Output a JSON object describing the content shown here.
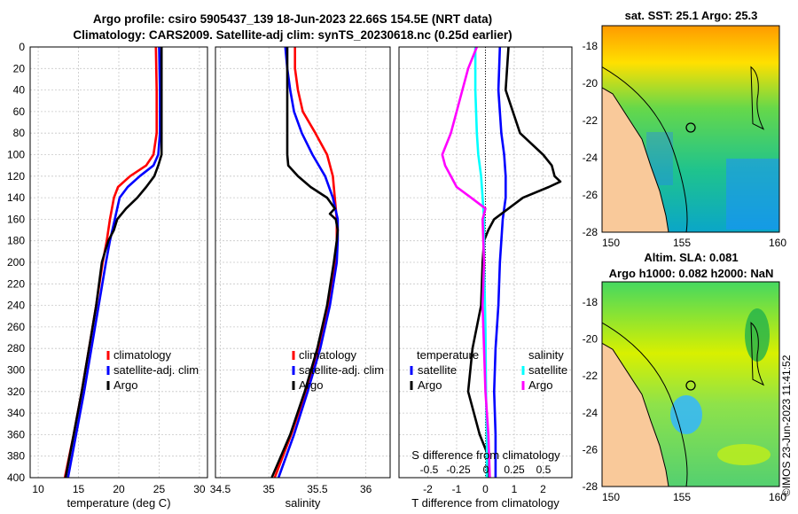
{
  "header": {
    "title_line1": "Argo profile: csiro 5905437_139 18-Jun-2023 22.66S 154.5E (NRT data)",
    "title_line2": "Climatology: CARS2009. Satellite-adj clim: synTS_20230618.nc (0.25d earlier)"
  },
  "maps": {
    "top_title": "sat. SST: 25.1 Argo: 25.3",
    "bottom_title_line1": "Altim. SLA: 0.081",
    "bottom_title_line2": "Argo h1000: 0.082 h2000: NaN",
    "x_ticks": [
      "150",
      "155",
      "160"
    ],
    "y_ticks": [
      "-18",
      "-20",
      "-22",
      "-24",
      "-26",
      "-28"
    ],
    "land_color": "#f9c99a"
  },
  "side_stamp": "©IMOS 23-Jun-2023 11:41:52",
  "colors": {
    "climatology": "#ff0000",
    "satellite": "#0000ff",
    "argo": "#000000",
    "sal_satellite": "#00ffff",
    "sal_argo": "#ff00ff"
  },
  "chart_data": [
    {
      "type": "line",
      "xlabel": "temperature (deg C)",
      "ylabel": "",
      "xlim": [
        9,
        31
      ],
      "ylim": [
        0,
        400
      ],
      "x_ticks": [
        10,
        15,
        20,
        25,
        30
      ],
      "y_ticks": [
        0,
        20,
        40,
        60,
        80,
        100,
        120,
        140,
        160,
        180,
        200,
        220,
        240,
        260,
        280,
        300,
        320,
        340,
        360,
        380,
        400
      ],
      "legend": [
        "climatology",
        "satellite-adj. clim",
        "Argo"
      ],
      "series": [
        {
          "name": "climatology",
          "color": "#ff0000",
          "depth": [
            0,
            40,
            80,
            100,
            110,
            120,
            130,
            140,
            160,
            180,
            200,
            240,
            280,
            320,
            360,
            400
          ],
          "values": [
            24.6,
            24.7,
            24.7,
            24.3,
            23.4,
            21.4,
            19.9,
            19.4,
            18.9,
            18.5,
            18.0,
            17.2,
            16.3,
            15.4,
            14.4,
            13.3
          ]
        },
        {
          "name": "satellite-adj. clim",
          "color": "#0000ff",
          "depth": [
            0,
            40,
            80,
            100,
            110,
            120,
            130,
            140,
            160,
            180,
            200,
            240,
            280,
            320,
            360,
            400
          ],
          "values": [
            25.0,
            25.1,
            25.1,
            24.9,
            24.3,
            22.6,
            21.1,
            20.1,
            19.5,
            18.9,
            18.4,
            17.5,
            16.6,
            15.7,
            14.7,
            13.7
          ]
        },
        {
          "name": "Argo",
          "color": "#000000",
          "depth": [
            0,
            20,
            60,
            80,
            100,
            110,
            120,
            130,
            140,
            150,
            160,
            170,
            180,
            190,
            200,
            240,
            280,
            320,
            360,
            400
          ],
          "values": [
            25.3,
            25.3,
            25.3,
            25.3,
            25.3,
            24.9,
            24.4,
            23.4,
            22.3,
            20.9,
            19.8,
            19.4,
            18.7,
            18.3,
            17.9,
            17.2,
            16.3,
            15.4,
            14.4,
            13.4
          ]
        }
      ]
    },
    {
      "type": "line",
      "xlabel": "salinity",
      "xlim": [
        34.45,
        36.25
      ],
      "ylim": [
        0,
        400
      ],
      "x_ticks": [
        34.5,
        35,
        35.5,
        36
      ],
      "legend": [
        "climatology",
        "satellite-adj. clim",
        "Argo"
      ],
      "series": [
        {
          "name": "climatology",
          "color": "#ff0000",
          "depth": [
            0,
            20,
            40,
            60,
            80,
            100,
            120,
            140,
            160,
            180,
            200,
            240,
            280,
            320,
            360,
            400
          ],
          "values": [
            35.27,
            35.27,
            35.3,
            35.35,
            35.48,
            35.6,
            35.66,
            35.68,
            35.7,
            35.7,
            35.69,
            35.61,
            35.51,
            35.38,
            35.23,
            35.06
          ]
        },
        {
          "name": "satellite-adj. clim",
          "color": "#0000ff",
          "depth": [
            0,
            20,
            40,
            60,
            80,
            100,
            120,
            140,
            160,
            180,
            200,
            240,
            280,
            320,
            360,
            400
          ],
          "values": [
            35.17,
            35.19,
            35.22,
            35.26,
            35.34,
            35.45,
            35.58,
            35.66,
            35.71,
            35.71,
            35.7,
            35.63,
            35.53,
            35.4,
            35.26,
            35.1
          ]
        },
        {
          "name": "Argo",
          "color": "#000000",
          "depth": [
            0,
            10,
            20,
            40,
            80,
            100,
            110,
            120,
            130,
            140,
            150,
            155,
            160,
            170,
            180,
            200,
            240,
            280,
            320,
            360,
            400
          ],
          "values": [
            35.19,
            35.19,
            35.19,
            35.19,
            35.19,
            35.19,
            35.2,
            35.3,
            35.43,
            35.6,
            35.68,
            35.63,
            35.69,
            35.71,
            35.7,
            35.67,
            35.6,
            35.5,
            35.37,
            35.22,
            35.03
          ]
        }
      ]
    },
    {
      "type": "line",
      "xlabel": "T difference from climatology",
      "top_xlabel": "S difference from climatology",
      "xlim": [
        -3,
        3
      ],
      "ylim": [
        0,
        400
      ],
      "x_ticks": [
        -2,
        -1,
        0,
        1,
        2
      ],
      "top_x_ticks": [
        "-0.5",
        "-0.25",
        "0",
        "0.25",
        "0.5"
      ],
      "legend_titles": [
        "temperature",
        "salinity"
      ],
      "legend_left": [
        "satellite",
        "Argo"
      ],
      "legend_right": [
        "satellite",
        "Argo"
      ],
      "series": [
        {
          "name": "temperature satellite",
          "color": "#0000ff",
          "depth": [
            0,
            40,
            80,
            100,
            120,
            140,
            160,
            200,
            240,
            280,
            320,
            360,
            400
          ],
          "values": [
            0.5,
            0.45,
            0.55,
            0.65,
            0.7,
            0.7,
            0.6,
            0.5,
            0.45,
            0.35,
            0.3,
            0.35,
            0.35
          ]
        },
        {
          "name": "temperature Argo",
          "color": "#000000",
          "depth": [
            0,
            40,
            80,
            100,
            110,
            120,
            125,
            130,
            140,
            160,
            170,
            180,
            200,
            240,
            280,
            320,
            360,
            380,
            400
          ],
          "values": [
            0.8,
            0.7,
            1.2,
            2.0,
            2.3,
            2.4,
            2.6,
            2.2,
            1.3,
            0.3,
            0.1,
            -0.05,
            -0.1,
            -0.15,
            -0.45,
            -0.6,
            -0.2,
            0.1,
            0.1
          ]
        },
        {
          "name": "salinity satellite",
          "color": "#00ffff",
          "depth": [
            0,
            40,
            80,
            100,
            120,
            140,
            160,
            200,
            260,
            320,
            360,
            400
          ],
          "values": [
            -0.35,
            -0.35,
            -0.3,
            -0.25,
            -0.15,
            -0.1,
            -0.05,
            -0.05,
            0,
            0.02,
            0.05,
            0.05
          ]
        },
        {
          "name": "salinity Argo",
          "color": "#ff00ff",
          "depth": [
            0,
            20,
            40,
            60,
            80,
            100,
            110,
            120,
            130,
            140,
            150,
            160,
            200,
            240,
            280,
            320,
            360,
            400
          ],
          "values": [
            -0.3,
            -0.6,
            -0.8,
            -1.0,
            -1.2,
            -1.5,
            -1.4,
            -1.2,
            -1.0,
            -0.5,
            0.0,
            -0.1,
            -0.05,
            -0.1,
            -0.05,
            0.0,
            0.1,
            0.15
          ]
        }
      ]
    }
  ]
}
